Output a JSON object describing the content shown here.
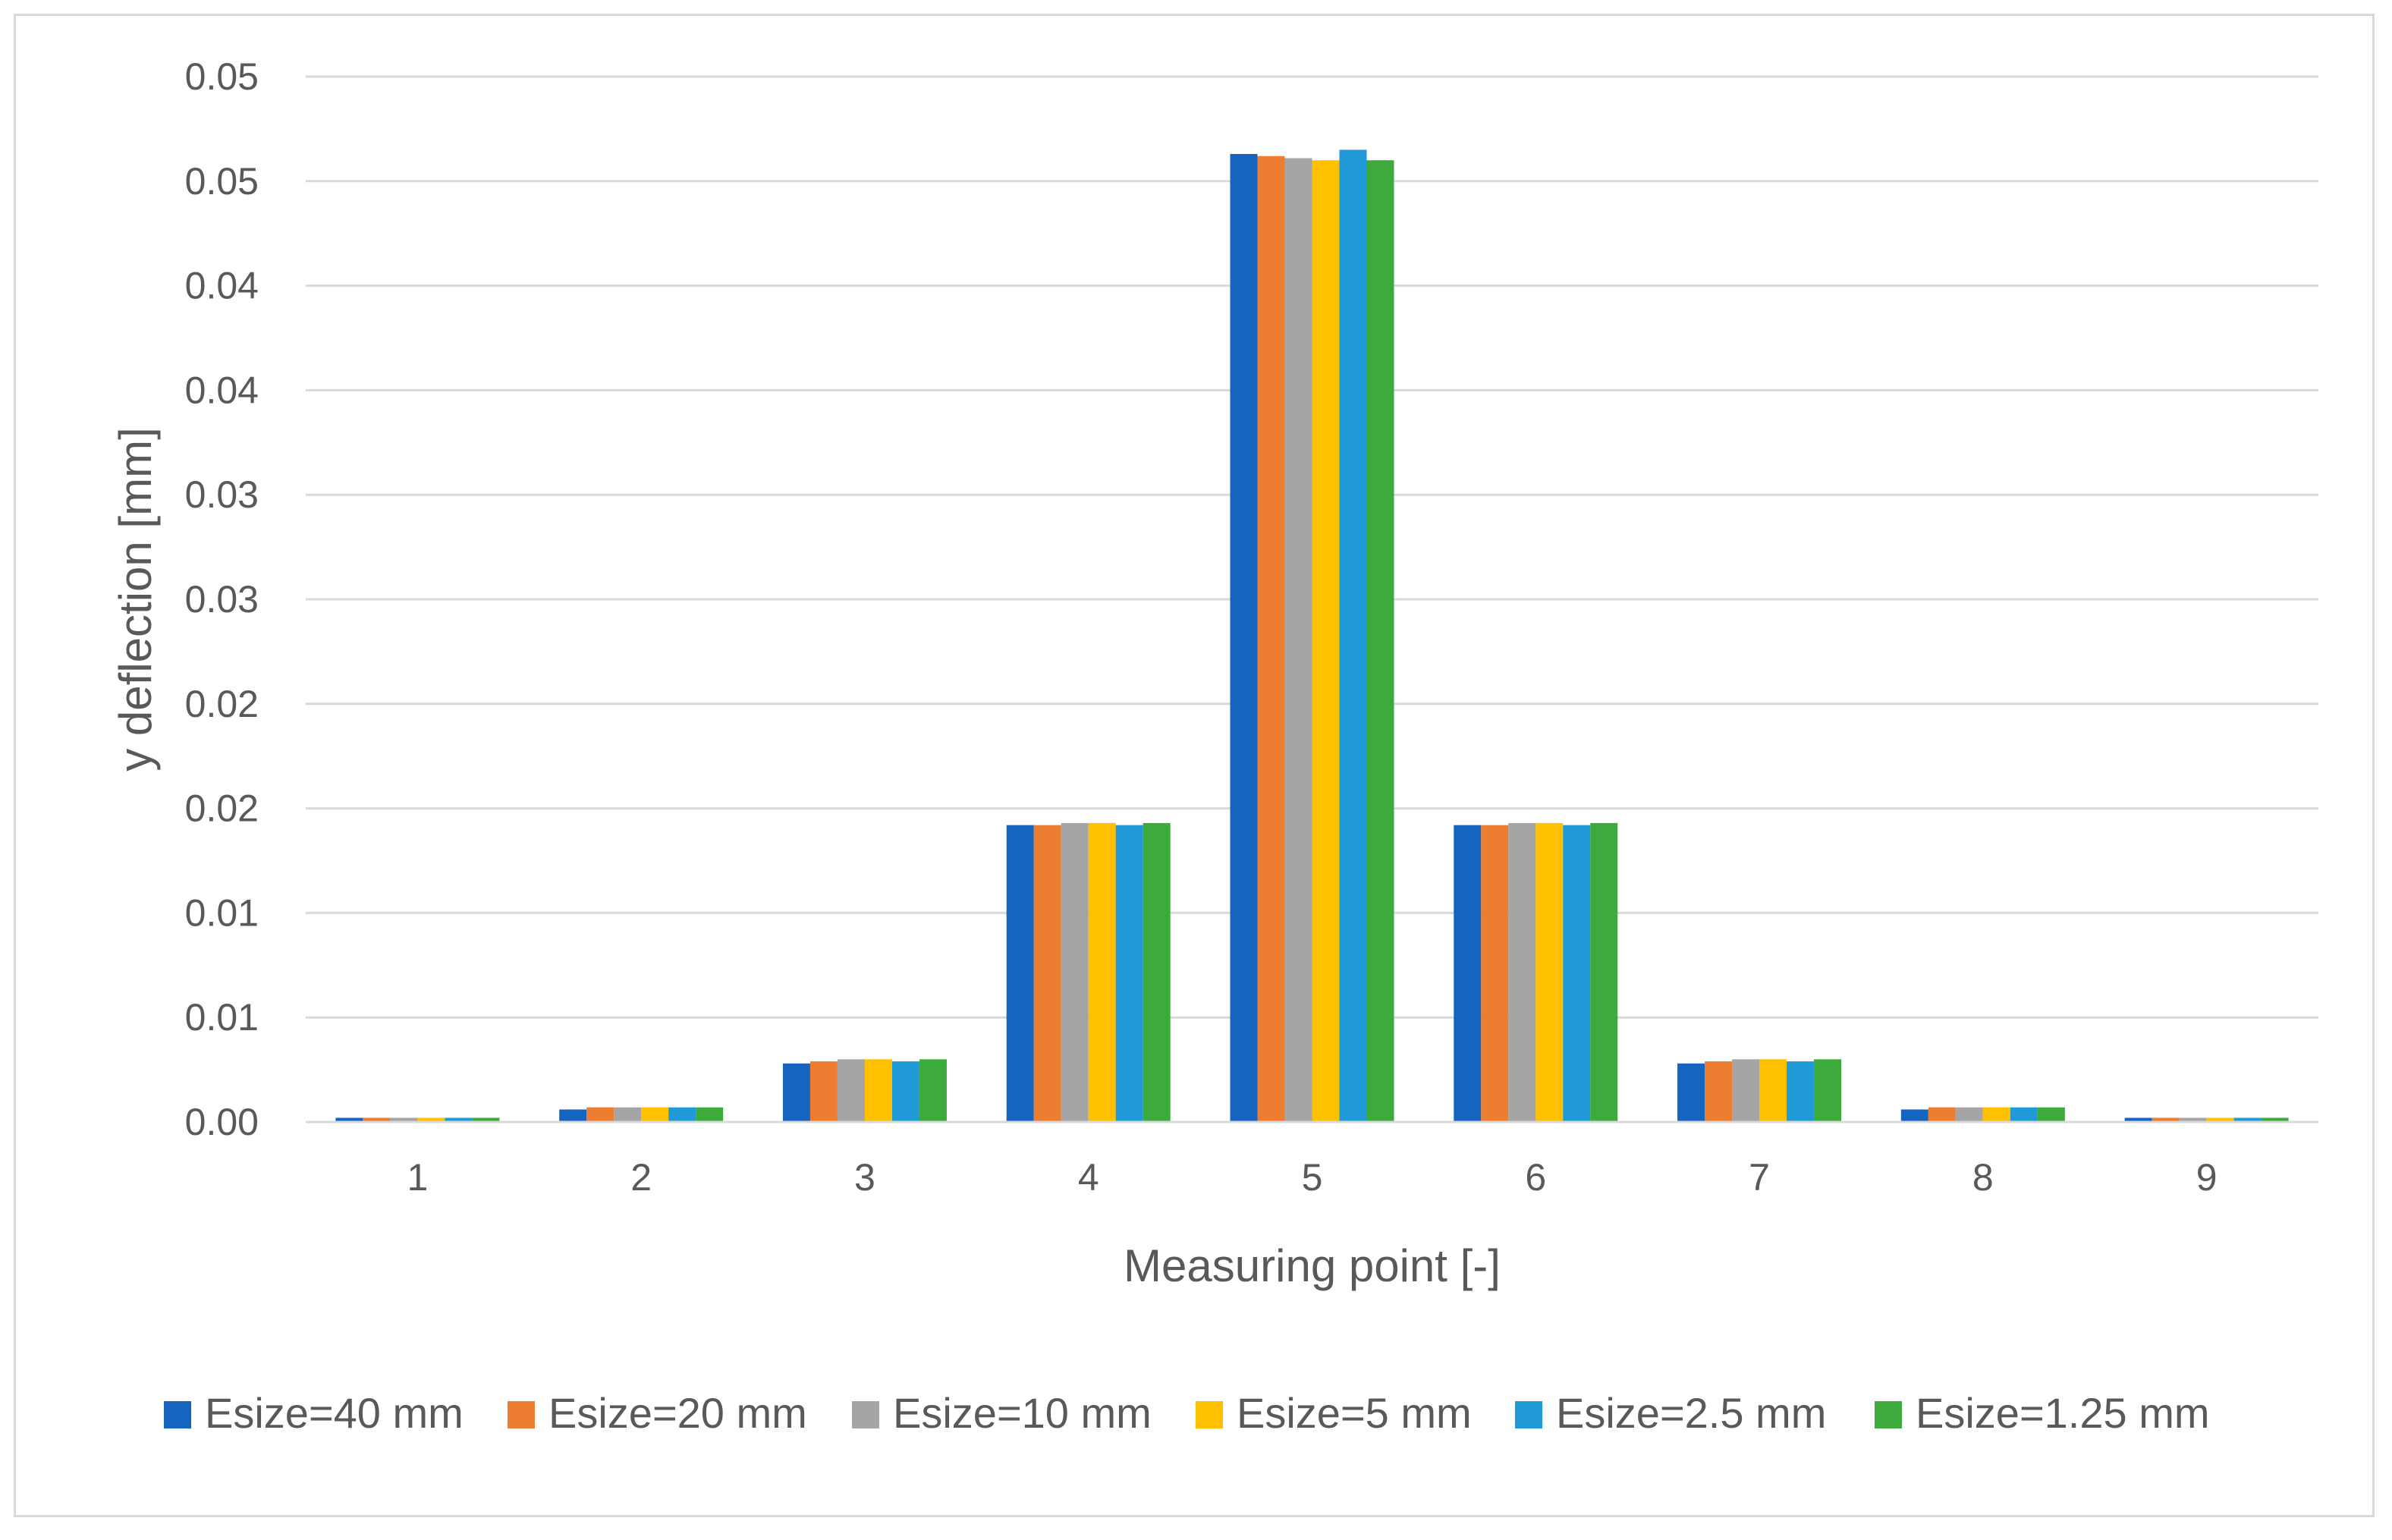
{
  "chart_data": {
    "type": "bar",
    "title": "",
    "xlabel": "Measuring point [-]",
    "ylabel": "y deflection [mm]",
    "categories": [
      "1",
      "2",
      "3",
      "4",
      "5",
      "6",
      "7",
      "8",
      "9"
    ],
    "ylim": [
      0,
      0.05
    ],
    "y_tick_values": [
      0,
      0.005,
      0.01,
      0.015,
      0.02,
      0.025,
      0.03,
      0.035,
      0.04,
      0.045,
      0.05
    ],
    "y_tick_labels": [
      "0.00",
      "0.01",
      "0.01",
      "0.02",
      "0.02",
      "0.03",
      "0.03",
      "0.04",
      "0.04",
      "0.05",
      "0.05"
    ],
    "grid": true,
    "legend_position": "bottom",
    "series": [
      {
        "name": "Esize=40 mm",
        "color": "#1565c0",
        "values": [
          0.0002,
          0.0006,
          0.0028,
          0.0142,
          0.0463,
          0.0142,
          0.0028,
          0.0006,
          0.0002
        ]
      },
      {
        "name": "Esize=20 mm",
        "color": "#ed7d31",
        "values": [
          0.0002,
          0.0007,
          0.0029,
          0.0142,
          0.0462,
          0.0142,
          0.0029,
          0.0007,
          0.0002
        ]
      },
      {
        "name": "Esize=10 mm",
        "color": "#a5a5a5",
        "values": [
          0.0002,
          0.0007,
          0.003,
          0.0143,
          0.0461,
          0.0143,
          0.003,
          0.0007,
          0.0002
        ]
      },
      {
        "name": "Esize=5 mm",
        "color": "#ffc000",
        "values": [
          0.0002,
          0.0007,
          0.003,
          0.0143,
          0.046,
          0.0143,
          0.003,
          0.0007,
          0.0002
        ]
      },
      {
        "name": "Esize=2.5 mm",
        "color": "#1f9ad6",
        "values": [
          0.0002,
          0.0007,
          0.0029,
          0.0142,
          0.0465,
          0.0142,
          0.0029,
          0.0007,
          0.0002
        ]
      },
      {
        "name": "Esize=1.25 mm",
        "color": "#3cab3c",
        "values": [
          0.0002,
          0.0007,
          0.003,
          0.0143,
          0.046,
          0.0143,
          0.003,
          0.0007,
          0.0002
        ]
      }
    ]
  }
}
